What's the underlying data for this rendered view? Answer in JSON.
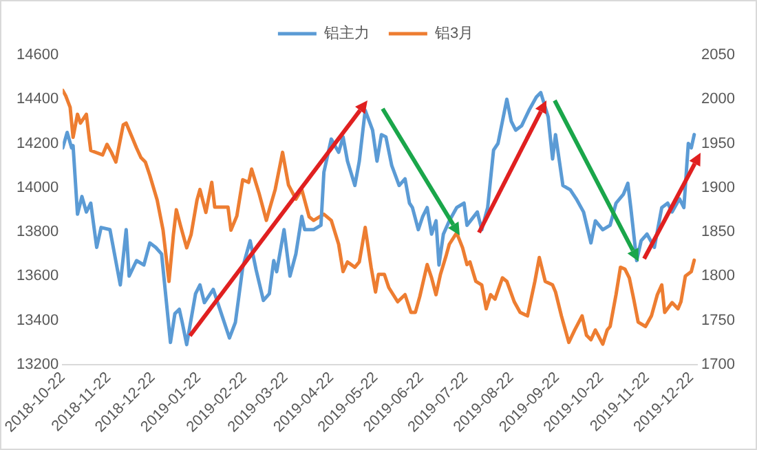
{
  "chart_data": {
    "type": "line",
    "legend": "top",
    "grid": false,
    "marker": "none",
    "line_style": "solid",
    "xlim": [
      "2018-10-22",
      "2019-12-26"
    ],
    "xticks": [
      "2018-10-22",
      "2018-11-22",
      "2018-12-22",
      "2019-01-22",
      "2019-02-22",
      "2019-03-22",
      "2019-04-22",
      "2019-05-22",
      "2019-06-22",
      "2019-07-22",
      "2019-08-22",
      "2019-09-22",
      "2019-10-22",
      "2019-11-22",
      "2019-12-22"
    ],
    "ylim": [
      13200,
      14600
    ],
    "yticks": [
      13200,
      13400,
      13600,
      13800,
      14000,
      14200,
      14400,
      14600
    ],
    "y2lim": [
      1700,
      2050
    ],
    "y2ticks": [
      1700,
      1750,
      1800,
      1850,
      1900,
      1950,
      2000,
      2050
    ],
    "series": [
      {
        "name": "铝主力",
        "color": "#5b9bd5",
        "axis": "y",
        "x": [
          "2018-10-22",
          "2018-10-25",
          "2018-10-28",
          "2018-10-29",
          "2018-11-01",
          "2018-11-04",
          "2018-11-07",
          "2018-11-10",
          "2018-11-14",
          "2018-11-17",
          "2018-11-23",
          "2018-11-30",
          "2018-12-04",
          "2018-12-06",
          "2018-12-11",
          "2018-12-16",
          "2018-12-20",
          "2018-12-24",
          "2018-12-28",
          "2019-01-03",
          "2019-01-06",
          "2019-01-09",
          "2019-01-11",
          "2019-01-14",
          "2019-01-20",
          "2019-01-23",
          "2019-01-26",
          "2019-02-01",
          "2019-02-06",
          "2019-02-12",
          "2019-02-16",
          "2019-02-21",
          "2019-02-26",
          "2019-03-02",
          "2019-03-07",
          "2019-03-11",
          "2019-03-14",
          "2019-03-16",
          "2019-03-21",
          "2019-03-25",
          "2019-03-29",
          "2019-04-02",
          "2019-04-04",
          "2019-04-10",
          "2019-04-15",
          "2019-04-17",
          "2019-04-22",
          "2019-04-27",
          "2019-04-30",
          "2019-05-03",
          "2019-05-08",
          "2019-05-11",
          "2019-05-15",
          "2019-05-20",
          "2019-05-23",
          "2019-05-26",
          "2019-05-29",
          "2019-06-02",
          "2019-06-07",
          "2019-06-11",
          "2019-06-14",
          "2019-06-16",
          "2019-06-20",
          "2019-06-23",
          "2019-06-26",
          "2019-06-29",
          "2019-07-02",
          "2019-07-04",
          "2019-07-07",
          "2019-07-11",
          "2019-07-16",
          "2019-07-21",
          "2019-07-23",
          "2019-07-30",
          "2019-08-02",
          "2019-08-06",
          "2019-08-10",
          "2019-08-13",
          "2019-08-16",
          "2019-08-19",
          "2019-08-22",
          "2019-08-25",
          "2019-08-29",
          "2019-09-03",
          "2019-09-08",
          "2019-09-11",
          "2019-09-16",
          "2019-09-19",
          "2019-09-21",
          "2019-09-26",
          "2019-10-01",
          "2019-10-05",
          "2019-10-10",
          "2019-10-15",
          "2019-10-18",
          "2019-10-23",
          "2019-10-28",
          "2019-11-01",
          "2019-11-06",
          "2019-11-09",
          "2019-11-11",
          "2019-11-15",
          "2019-11-18",
          "2019-11-22",
          "2019-11-27",
          "2019-12-02",
          "2019-12-06",
          "2019-12-09",
          "2019-12-14",
          "2019-12-17",
          "2019-12-20",
          "2019-12-22",
          "2019-12-24"
        ],
        "values": [
          14180,
          14250,
          14180,
          14190,
          13880,
          13960,
          13890,
          13930,
          13730,
          13820,
          13810,
          13560,
          13810,
          13600,
          13670,
          13650,
          13750,
          13730,
          13700,
          13300,
          13430,
          13450,
          13390,
          13290,
          13520,
          13560,
          13480,
          13540,
          13440,
          13320,
          13390,
          13640,
          13760,
          13630,
          13490,
          13520,
          13670,
          13620,
          13810,
          13600,
          13700,
          13870,
          13810,
          13810,
          13830,
          14070,
          14220,
          14160,
          14230,
          14120,
          14010,
          14120,
          14350,
          14260,
          14120,
          14240,
          14230,
          14100,
          14010,
          14040,
          13930,
          13910,
          13810,
          13870,
          13910,
          13790,
          13850,
          13650,
          13790,
          13850,
          13910,
          13930,
          13830,
          13890,
          13810,
          13910,
          14170,
          14200,
          14300,
          14400,
          14300,
          14260,
          14280,
          14350,
          14410,
          14430,
          14320,
          14130,
          14240,
          14010,
          13990,
          13950,
          13890,
          13750,
          13850,
          13810,
          13830,
          13930,
          13970,
          14020,
          13910,
          13670,
          13760,
          13790,
          13730,
          13910,
          13930,
          13890,
          13950,
          13910,
          14200,
          14180,
          14240
        ]
      },
      {
        "name": "铝3月",
        "color": "#ed7d31",
        "axis": "y2",
        "x": [
          "2018-10-22",
          "2018-10-24",
          "2018-10-27",
          "2018-10-29",
          "2018-11-01",
          "2018-11-03",
          "2018-11-07",
          "2018-11-09",
          "2018-11-10",
          "2018-11-18",
          "2018-11-21",
          "2018-11-24",
          "2018-11-27",
          "2018-12-02",
          "2018-12-04",
          "2018-12-08",
          "2018-12-11",
          "2018-12-14",
          "2018-12-17",
          "2018-12-20",
          "2018-12-25",
          "2018-12-29",
          "2019-01-02",
          "2019-01-05",
          "2019-01-07",
          "2019-01-10",
          "2019-01-14",
          "2019-01-17",
          "2019-01-21",
          "2019-01-23",
          "2019-01-27",
          "2019-01-31",
          "2019-02-02",
          "2019-02-11",
          "2019-02-13",
          "2019-02-17",
          "2019-02-21",
          "2019-02-25",
          "2019-02-27",
          "2019-03-04",
          "2019-03-09",
          "2019-03-11",
          "2019-03-15",
          "2019-03-20",
          "2019-03-24",
          "2019-03-29",
          "2019-04-02",
          "2019-04-07",
          "2019-04-10",
          "2019-04-14",
          "2019-04-17",
          "2019-04-22",
          "2019-04-27",
          "2019-04-30",
          "2019-05-03",
          "2019-05-08",
          "2019-05-11",
          "2019-05-15",
          "2019-05-19",
          "2019-05-22",
          "2019-05-24",
          "2019-05-28",
          "2019-05-31",
          "2019-06-03",
          "2019-06-06",
          "2019-06-11",
          "2019-06-15",
          "2019-06-18",
          "2019-06-21",
          "2019-06-26",
          "2019-06-29",
          "2019-07-02",
          "2019-07-05",
          "2019-07-09",
          "2019-07-11",
          "2019-07-16",
          "2019-07-20",
          "2019-07-23",
          "2019-07-25",
          "2019-07-29",
          "2019-08-02",
          "2019-08-05",
          "2019-08-08",
          "2019-08-11",
          "2019-08-16",
          "2019-08-19",
          "2019-08-24",
          "2019-08-28",
          "2019-09-02",
          "2019-09-07",
          "2019-09-10",
          "2019-09-14",
          "2019-09-19",
          "2019-09-21",
          "2019-09-25",
          "2019-09-30",
          "2019-10-04",
          "2019-10-09",
          "2019-10-12",
          "2019-10-15",
          "2019-10-18",
          "2019-10-23",
          "2019-10-26",
          "2019-10-28",
          "2019-11-01",
          "2019-11-04",
          "2019-11-07",
          "2019-11-10",
          "2019-11-13",
          "2019-11-16",
          "2019-11-21",
          "2019-11-25",
          "2019-11-29",
          "2019-12-02",
          "2019-12-04",
          "2019-12-09",
          "2019-12-13",
          "2019-12-15",
          "2019-12-18",
          "2019-12-22",
          "2019-12-24"
        ],
        "values": [
          2010,
          2004,
          1991,
          1957,
          1983,
          1973,
          1983,
          1955,
          1942,
          1937,
          1949,
          1940,
          1929,
          1971,
          1973,
          1957,
          1945,
          1934,
          1929,
          1914,
          1886,
          1852,
          1794,
          1847,
          1875,
          1856,
          1832,
          1847,
          1886,
          1898,
          1872,
          1906,
          1878,
          1878,
          1852,
          1868,
          1909,
          1906,
          1921,
          1894,
          1863,
          1875,
          1898,
          1940,
          1903,
          1887,
          1898,
          1867,
          1863,
          1867,
          1870,
          1863,
          1836,
          1805,
          1816,
          1810,
          1816,
          1855,
          1810,
          1782,
          1802,
          1802,
          1787,
          1779,
          1771,
          1779,
          1759,
          1759,
          1777,
          1813,
          1798,
          1779,
          1802,
          1824,
          1836,
          1849,
          1832,
          1813,
          1816,
          1794,
          1790,
          1763,
          1779,
          1774,
          1798,
          1794,
          1771,
          1759,
          1755,
          1794,
          1821,
          1794,
          1790,
          1782,
          1755,
          1725,
          1739,
          1755,
          1733,
          1728,
          1739,
          1723,
          1739,
          1743,
          1779,
          1810,
          1808,
          1798,
          1774,
          1748,
          1743,
          1755,
          1779,
          1790,
          1759,
          1770,
          1763,
          1771,
          1800,
          1805,
          1818
        ]
      }
    ]
  }
}
